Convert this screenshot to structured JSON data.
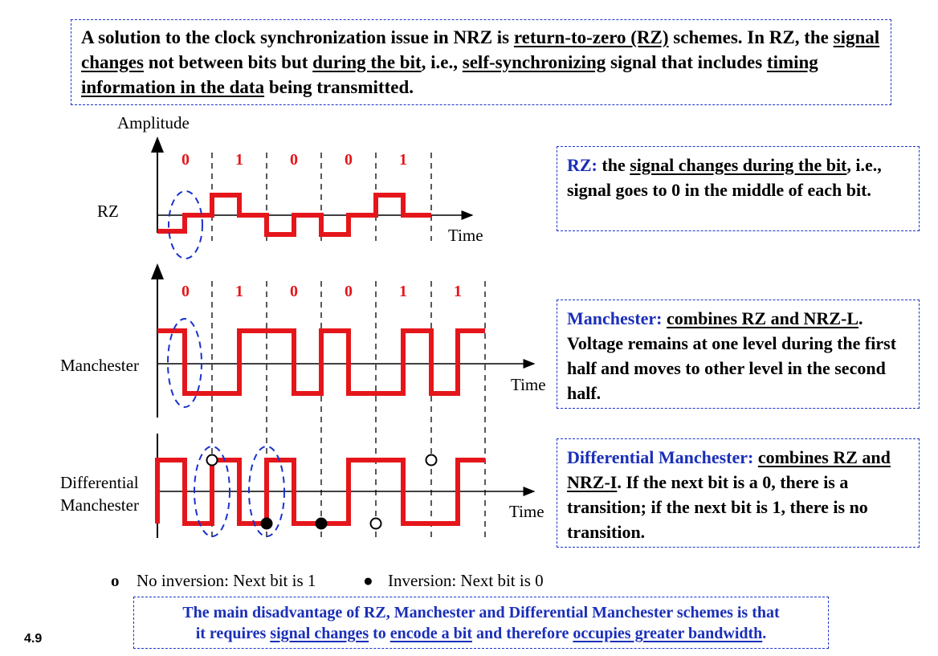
{
  "intro": {
    "p1": "A solution to the clock synchronization issue in NRZ is ",
    "u1": "return-to-zero (RZ)",
    "p2": " schemes.  In RZ, the ",
    "u2": "signal changes",
    "p3": " not between bits but ",
    "u3": "during the bit",
    "p4": ", i.e., ",
    "u4": "self-synchronizing",
    "p5": " signal that includes ",
    "u5": "timing information in the data",
    "p6": " being transmitted."
  },
  "diagram": {
    "amplitude_label": "Amplitude",
    "time_label": "Time",
    "rz_label": "RZ",
    "manchester_label": "Manchester",
    "diff_label_1": "Differential",
    "diff_label_2": "Manchester",
    "rz_bits": [
      "0",
      "1",
      "0",
      "0",
      "1"
    ],
    "manchester_bits": [
      "0",
      "1",
      "0",
      "0",
      "1",
      "1"
    ]
  },
  "rz_box": {
    "term": "RZ:",
    "p1": " the ",
    "u1": "signal changes during the bit",
    "p2": ", i.e., signal goes to 0 in the middle of each bit."
  },
  "manchester_box": {
    "term": "Manchester:",
    "p1": " ",
    "u1": "combines RZ and NRZ-L",
    "p2": ".  Voltage remains at one level during the first half and moves to other level in the second half."
  },
  "diff_box": {
    "term": "Differential Manchester:",
    "p1": " ",
    "u1": "combines RZ and NRZ-I",
    "p2": ".  If the next bit is a 0, there is a transition; if the next bit is 1, there is no transition."
  },
  "legend": {
    "open_symbol": "o",
    "open_text": "No inversion: Next bit is 1",
    "filled_symbol": "●",
    "filled_text": "Inversion: Next bit is 0"
  },
  "bottom": {
    "line1": "The main disadvantage of RZ, Manchester and Differential Manchester schemes is that",
    "p1": "it requires ",
    "u1": "signal changes",
    "p2": " to ",
    "u2": "encode a bit",
    "p3": " and therefore ",
    "u3": "occupies greater bandwidth",
    "p4": "."
  },
  "page_number": "4.9",
  "colors": {
    "signal": "#e5161b",
    "bit_label": "#e5161b",
    "accent_blue": "#1a2fb8",
    "ellipse": "#1a33cc"
  }
}
